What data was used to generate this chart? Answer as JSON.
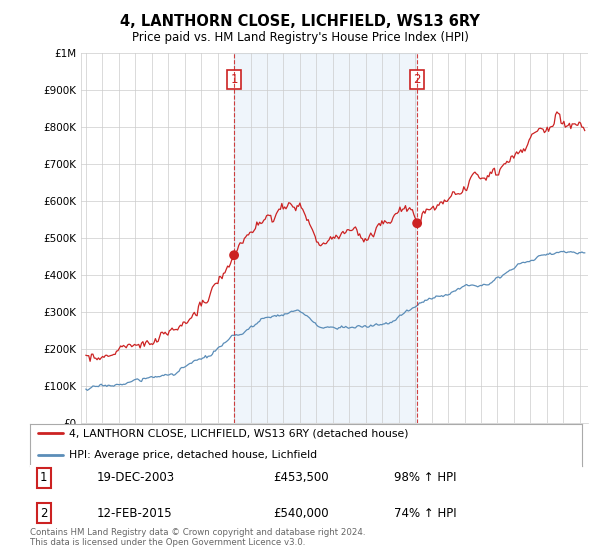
{
  "title": "4, LANTHORN CLOSE, LICHFIELD, WS13 6RY",
  "subtitle": "Price paid vs. HM Land Registry's House Price Index (HPI)",
  "ylabel_ticks": [
    "£0",
    "£100K",
    "£200K",
    "£300K",
    "£400K",
    "£500K",
    "£600K",
    "£700K",
    "£800K",
    "£900K",
    "£1M"
  ],
  "ytick_values": [
    0,
    100000,
    200000,
    300000,
    400000,
    500000,
    600000,
    700000,
    800000,
    900000,
    1000000
  ],
  "ylim": [
    0,
    1000000
  ],
  "xlim_start": 1994.7,
  "xlim_end": 2025.5,
  "hpi_color": "#5b8db8",
  "price_color": "#cc2222",
  "vline_color": "#cc2222",
  "shade_color": "#ddeeff",
  "sale1_x": 2004.0,
  "sale1_y": 453500,
  "sale2_x": 2015.12,
  "sale2_y": 540000,
  "legend_price_label": "4, LANTHORN CLOSE, LICHFIELD, WS13 6RY (detached house)",
  "legend_hpi_label": "HPI: Average price, detached house, Lichfield",
  "table_rows": [
    {
      "num": "1",
      "date": "19-DEC-2003",
      "price": "£453,500",
      "hpi": "98% ↑ HPI"
    },
    {
      "num": "2",
      "date": "12-FEB-2015",
      "price": "£540,000",
      "hpi": "74% ↑ HPI"
    }
  ],
  "footnote": "Contains HM Land Registry data © Crown copyright and database right 2024.\nThis data is licensed under the Open Government Licence v3.0.",
  "background_color": "#ffffff",
  "grid_color": "#cccccc"
}
